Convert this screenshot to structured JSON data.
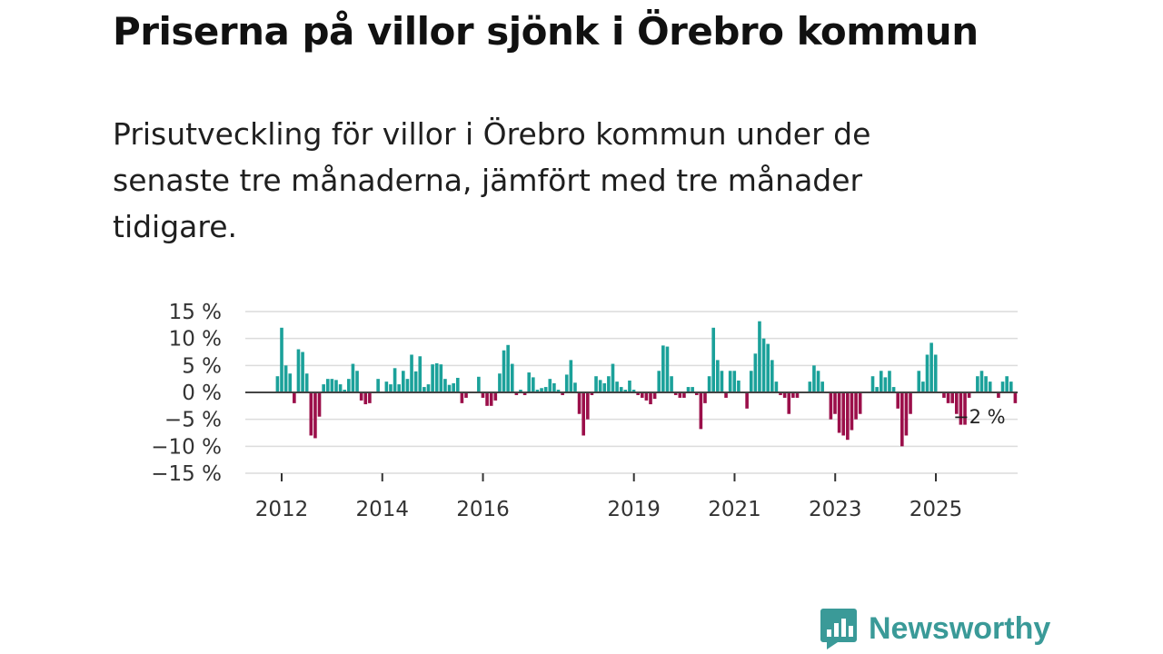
{
  "header": {
    "title": "Priserna på villor sjönk i Örebro kommun",
    "subtitle": "Prisutveckling för villor i Örebro kommun under de senaste tre månaderna, jämfört med tre månader tidigare."
  },
  "brand": {
    "name": "Newsworthy",
    "icon": "newsworthy-logo-icon"
  },
  "colors": {
    "positive": "#1ba19a",
    "negative": "#9b0f4a",
    "zero_line": "#444444",
    "grid": "#dcdcdc"
  },
  "chart_data": {
    "type": "bar",
    "title": "Priserna på villor sjönk i Örebro kommun",
    "ylabel": "",
    "xlabel": "",
    "ylim": [
      -15,
      15
    ],
    "y_ticks": [
      15,
      10,
      5,
      0,
      -5,
      -10,
      -15
    ],
    "y_tick_labels": [
      "15 %",
      "10 %",
      "5 %",
      "0 %",
      "−5 %",
      "−10 %",
      "−15 %"
    ],
    "x_ticks": [
      2012,
      2014,
      2016,
      2019,
      2021,
      2023,
      2025
    ],
    "x_tick_labels": [
      "2012",
      "2014",
      "2016",
      "2019",
      "2021",
      "2023",
      "2025"
    ],
    "x_start": 2011.917,
    "step_years": 0.0833,
    "values": [
      3,
      12,
      5,
      3.5,
      -2,
      8,
      7.5,
      3.5,
      -8,
      -8.5,
      -4.5,
      1.5,
      2.5,
      2.5,
      2.3,
      1.5,
      0.5,
      2.5,
      5.3,
      4,
      -1.5,
      -2.2,
      -2,
      0,
      2.5,
      0,
      2,
      1.5,
      4.5,
      1.5,
      4,
      2.5,
      7,
      3.9,
      6.7,
      1,
      1.5,
      5.2,
      5.4,
      5.2,
      2.5,
      1.4,
      1.7,
      2.7,
      -2,
      -1,
      0,
      0,
      2.9,
      -1,
      -2.5,
      -2.5,
      -1.5,
      3.5,
      7.8,
      8.8,
      5.3,
      -0.5,
      0.5,
      -0.5,
      3.7,
      2.8,
      0.5,
      0.8,
      1,
      2.5,
      1.7,
      0.5,
      -0.5,
      3.3,
      6,
      1.8,
      -4,
      -8,
      -5,
      -0.5,
      3,
      2.3,
      1.7,
      3,
      5.3,
      2,
      1,
      0.5,
      2.2,
      0.5,
      -0.5,
      -1,
      -1.5,
      -2.2,
      -1.2,
      4,
      8.7,
      8.5,
      3,
      -0.5,
      -1,
      -1,
      1,
      1,
      -0.5,
      -6.8,
      -2,
      3,
      12,
      6,
      4,
      -1,
      4,
      4,
      2.2,
      0,
      -3,
      4,
      7.2,
      13.2,
      10,
      9,
      6,
      2,
      -0.5,
      -1,
      -4,
      -1,
      -1,
      0,
      0,
      2,
      5,
      4,
      2,
      0,
      -5,
      -4,
      -7.5,
      -8,
      -8.8,
      -7,
      -5,
      -4,
      0,
      0,
      3,
      1,
      4,
      2.8,
      4,
      1,
      -3,
      -10,
      -8,
      -4,
      0,
      4,
      2,
      7,
      9.2,
      7,
      0,
      -1,
      -2,
      -2,
      -4,
      -6,
      -6,
      -1,
      0,
      3,
      4,
      3,
      2,
      0,
      -1,
      2,
      3,
      2,
      -2
    ],
    "annotations": [
      {
        "text": "−2 %",
        "target": "last-value"
      }
    ]
  }
}
